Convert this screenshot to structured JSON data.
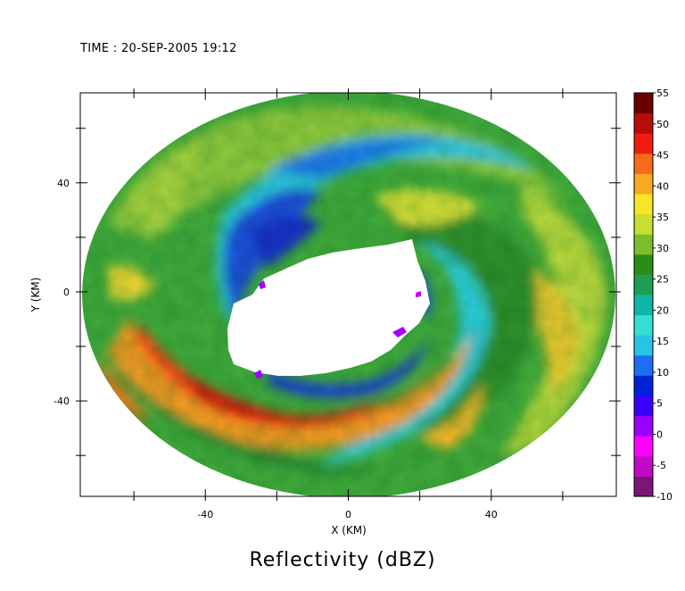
{
  "time_label": "TIME : 20-SEP-2005 19:12",
  "chart_data": {
    "type": "heatmap",
    "title": "Reflectivity (dBZ)",
    "xlabel": "X (KM)",
    "ylabel": "Y (KM)",
    "xlim": [
      -75,
      75
    ],
    "ylim": [
      -75,
      73
    ],
    "xticks": [
      -40,
      0,
      40
    ],
    "yticks": [
      -40,
      0,
      40
    ],
    "colorbar": {
      "ticks": [
        -10,
        -5,
        0,
        5,
        10,
        15,
        20,
        25,
        30,
        35,
        40,
        45,
        50,
        55
      ],
      "colors": [
        "#7a1678",
        "#c00ac8",
        "#ff00ff",
        "#9a00ff",
        "#3a00ff",
        "#0022d6",
        "#1c6ef2",
        "#27c4e8",
        "#35ddd6",
        "#0fb6a8",
        "#1e9e55",
        "#2c8c18",
        "#7bbe2c",
        "#c8de32",
        "#f5e728",
        "#f7a923",
        "#fb6a1c",
        "#f11c10",
        "#b80c08",
        "#6a0000"
      ],
      "range": [
        -10,
        55
      ]
    },
    "echo_domain": {
      "center": [
        0,
        0
      ],
      "radius_km": 74
    },
    "eye": {
      "center": [
        0,
        -5
      ],
      "description": "no echo region"
    }
  }
}
